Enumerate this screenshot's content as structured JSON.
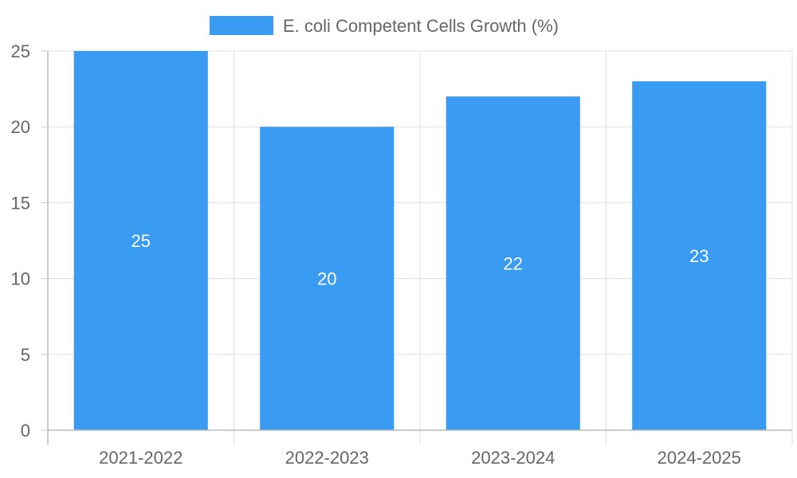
{
  "chart_data": {
    "type": "bar",
    "title": "",
    "xlabel": "",
    "ylabel": "",
    "categories": [
      "2021-2022",
      "2022-2023",
      "2023-2024",
      "2024-2025"
    ],
    "series": [
      {
        "name": "E. coli Competent Cells Growth (%)",
        "values": [
          25,
          20,
          22,
          23
        ],
        "color": "#399BF2"
      }
    ],
    "ylim": [
      0,
      25
    ],
    "yticks": [
      "0",
      "5",
      "10",
      "15",
      "20",
      "25"
    ],
    "data_labels": [
      "25",
      "20",
      "22",
      "23"
    ],
    "grid": true,
    "legend_position": "top-center"
  }
}
